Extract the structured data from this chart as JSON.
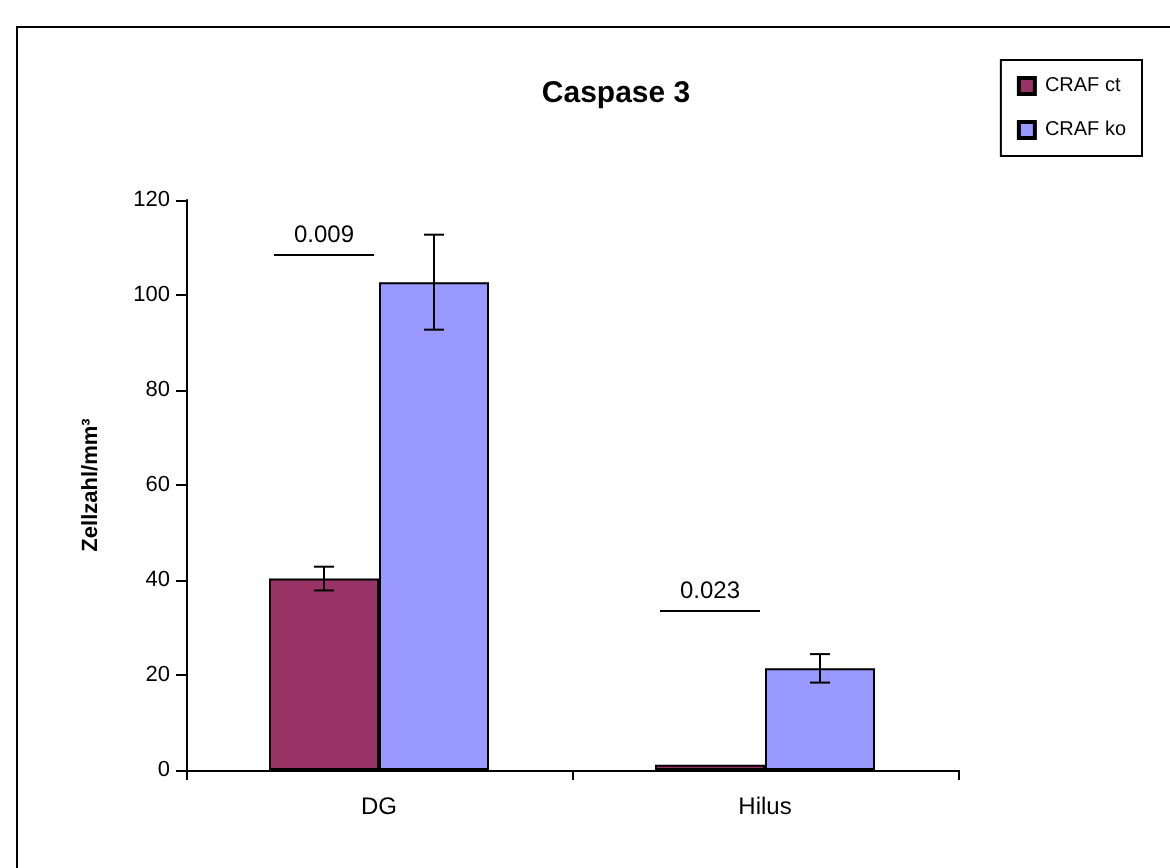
{
  "chart_data": {
    "type": "bar",
    "title": "Caspase 3",
    "ylabel": "Zellzahl/mm³",
    "categories": [
      "DG",
      "Hilus"
    ],
    "series": [
      {
        "name": "CRAF ct",
        "color": "#993366",
        "values": [
          40.3,
          1.1
        ],
        "errors": [
          2.5,
          null
        ]
      },
      {
        "name": "CRAF ko",
        "color": "#9999ff",
        "values": [
          102.7,
          21.4
        ],
        "errors": [
          10,
          3
        ]
      }
    ],
    "ylim": [
      0,
      120
    ],
    "yticks": [
      0,
      20,
      40,
      60,
      80,
      100,
      120
    ],
    "grid": false,
    "legend": "top right",
    "annotations": [
      "0.009",
      "0.023"
    ]
  }
}
